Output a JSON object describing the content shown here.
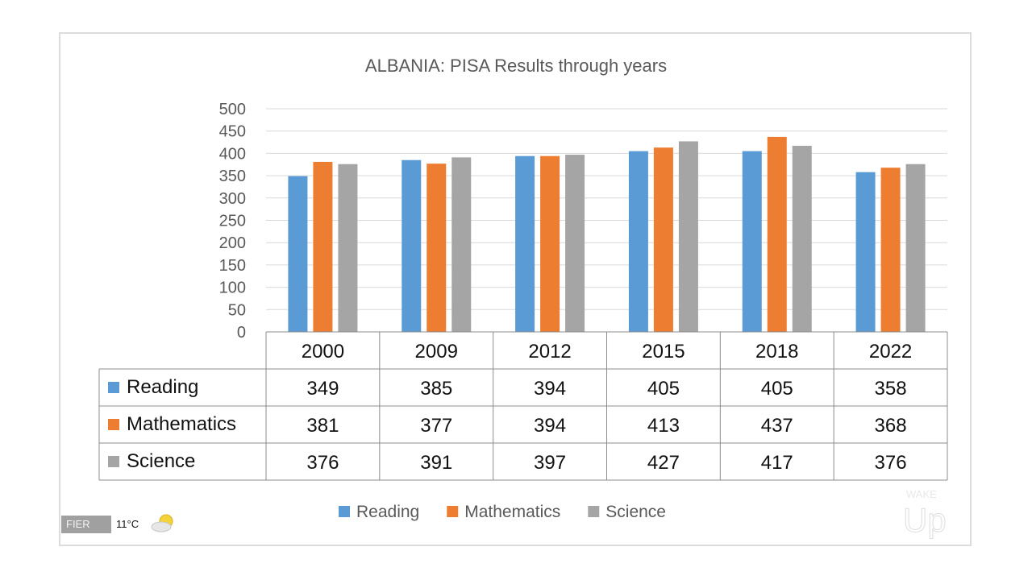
{
  "overlay": {
    "location": "FIER",
    "temperature": "11°C",
    "weather_icon": "partly-cloudy-icon",
    "logo_text": "WAKE UP"
  },
  "chart_data": {
    "type": "bar",
    "title": "ALBANIA: PISA Results through years",
    "categories": [
      "2000",
      "2009",
      "2012",
      "2015",
      "2018",
      "2022"
    ],
    "series": [
      {
        "name": "Reading",
        "color": "#5B9BD5",
        "values": [
          349,
          385,
          394,
          405,
          405,
          358
        ]
      },
      {
        "name": "Mathematics",
        "color": "#ED7D31",
        "values": [
          381,
          377,
          394,
          413,
          437,
          368
        ]
      },
      {
        "name": "Science",
        "color": "#A5A5A5",
        "values": [
          376,
          391,
          397,
          427,
          417,
          376
        ]
      }
    ],
    "ylim": [
      0,
      500
    ],
    "yticks": [
      0,
      50,
      100,
      150,
      200,
      250,
      300,
      350,
      400,
      450,
      500
    ],
    "grid": true,
    "legend": "bottom",
    "data_table": true
  }
}
